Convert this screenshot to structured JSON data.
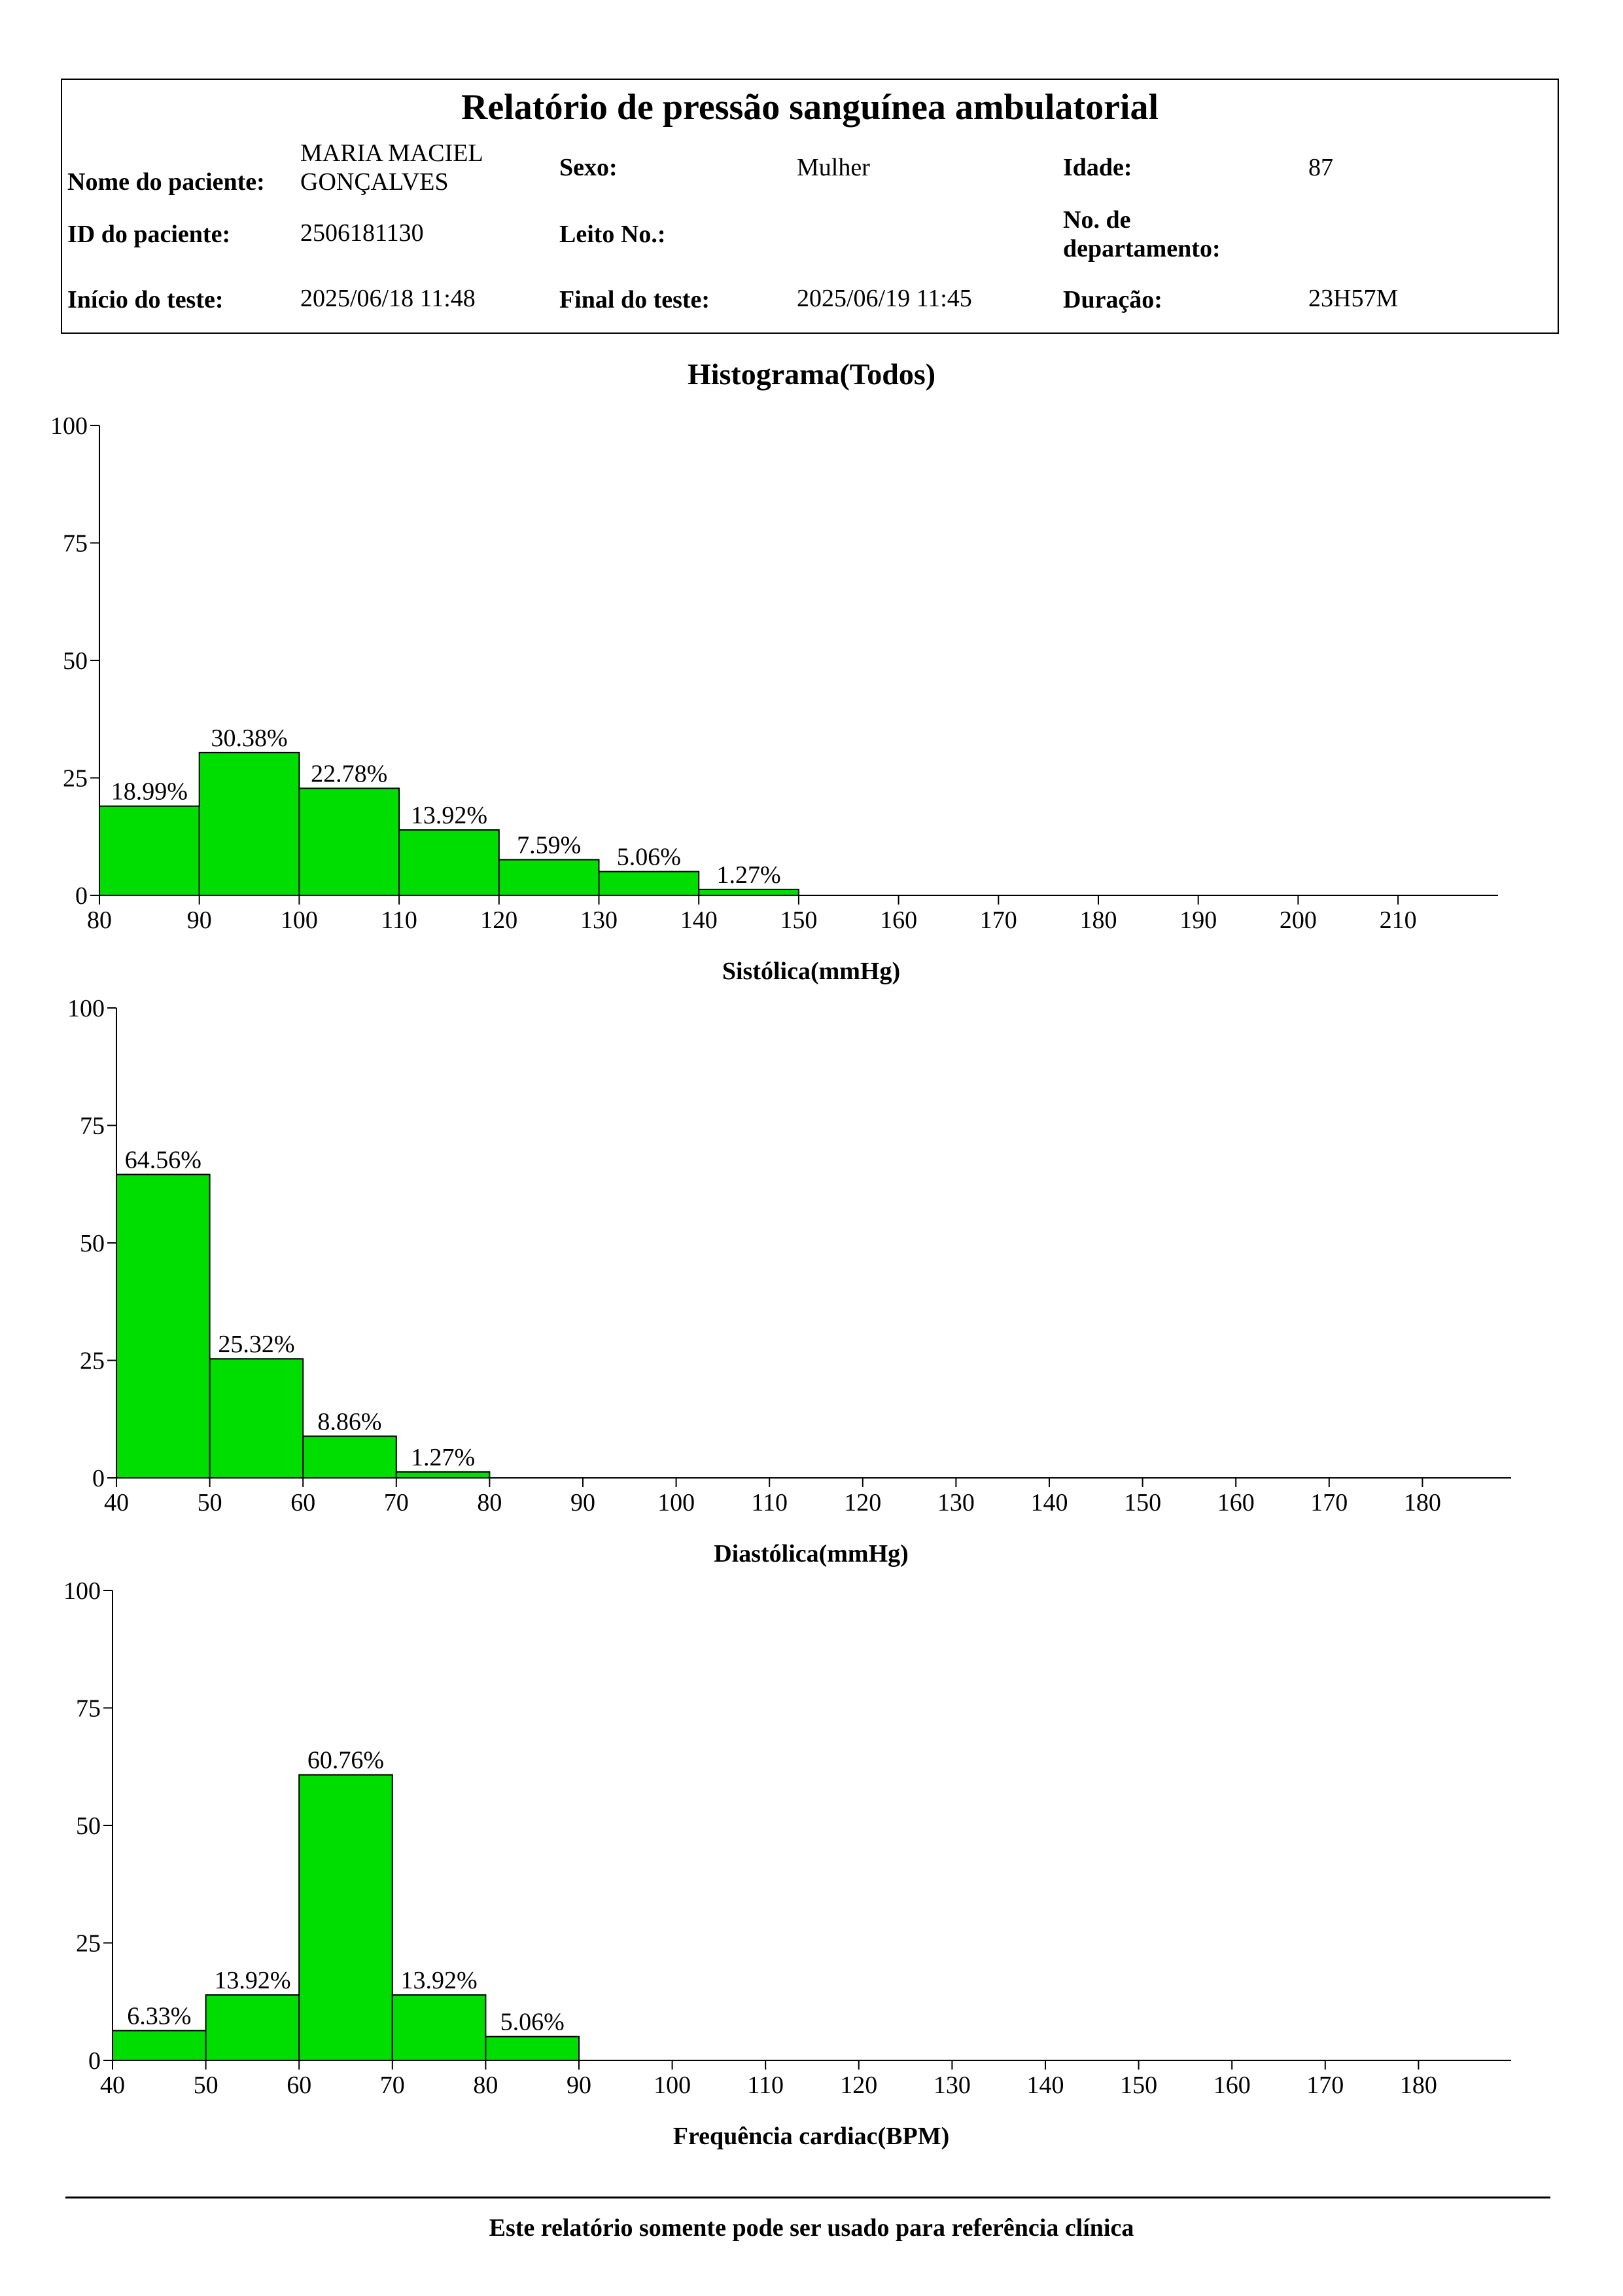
{
  "report": {
    "title": "Relatório de pressão sanguínea ambulatorial",
    "patient_name_label": "Nome do paciente:",
    "patient_name_line1": "MARIA MACIEL",
    "patient_name_line2": "GONÇALVES",
    "sex_label": "Sexo:",
    "sex_value": "Mulher",
    "age_label": "Idade:",
    "age_value": "87",
    "patient_id_label": "ID do paciente:",
    "patient_id_value": "2506181130",
    "bed_label": "Leito No.:",
    "bed_value": "",
    "department_label_line1": "No. de",
    "department_label_line2": "departamento:",
    "department_value": "",
    "start_label": "Início do teste:",
    "start_value": "2025/06/18 11:48",
    "end_label": "Final do teste:",
    "end_value": "2025/06/19 11:45",
    "duration_label": "Duração:",
    "duration_value": "23H57M"
  },
  "chart_title": "Histograma(Todos)",
  "colors": {
    "bar_fill": "#00dd00",
    "bar_stroke": "#000000",
    "axis": "#000000"
  },
  "footer": {
    "note": "Este relatório somente pode ser usado para referência clínica"
  },
  "chart_data": [
    {
      "type": "bar",
      "xlabel": "Sistólica(mmHg)",
      "ylabel": "",
      "ylim": [
        0,
        100
      ],
      "yticks": [
        0,
        25,
        50,
        75,
        100
      ],
      "xticks": [
        80,
        90,
        100,
        110,
        120,
        130,
        140,
        150,
        160,
        170,
        180,
        190,
        200,
        210
      ],
      "xlim": [
        80,
        220
      ],
      "bins": [
        {
          "x0": 80,
          "x1": 90,
          "value": 18.99,
          "label": "18.99%"
        },
        {
          "x0": 90,
          "x1": 100,
          "value": 30.38,
          "label": "30.38%"
        },
        {
          "x0": 100,
          "x1": 110,
          "value": 22.78,
          "label": "22.78%"
        },
        {
          "x0": 110,
          "x1": 120,
          "value": 13.92,
          "label": "13.92%"
        },
        {
          "x0": 120,
          "x1": 130,
          "value": 7.59,
          "label": "7.59%"
        },
        {
          "x0": 130,
          "x1": 140,
          "value": 5.06,
          "label": "5.06%"
        },
        {
          "x0": 140,
          "x1": 150,
          "value": 1.27,
          "label": "1.27%"
        }
      ]
    },
    {
      "type": "bar",
      "xlabel": "Diastólica(mmHg)",
      "ylabel": "",
      "ylim": [
        0,
        100
      ],
      "yticks": [
        0,
        25,
        50,
        75,
        100
      ],
      "xticks": [
        40,
        50,
        60,
        70,
        80,
        90,
        100,
        110,
        120,
        130,
        140,
        150,
        160,
        170,
        180
      ],
      "xlim": [
        40,
        190
      ],
      "bins": [
        {
          "x0": 40,
          "x1": 50,
          "value": 64.56,
          "label": "64.56%"
        },
        {
          "x0": 50,
          "x1": 60,
          "value": 25.32,
          "label": "25.32%"
        },
        {
          "x0": 60,
          "x1": 70,
          "value": 8.86,
          "label": "8.86%"
        },
        {
          "x0": 70,
          "x1": 80,
          "value": 1.27,
          "label": "1.27%"
        }
      ]
    },
    {
      "type": "bar",
      "xlabel": "Frequência cardiac(BPM)",
      "ylabel": "",
      "ylim": [
        0,
        100
      ],
      "yticks": [
        0,
        25,
        50,
        75,
        100
      ],
      "xticks": [
        40,
        50,
        60,
        70,
        80,
        90,
        100,
        110,
        120,
        130,
        140,
        150,
        160,
        170,
        180
      ],
      "xlim": [
        40,
        190
      ],
      "bins": [
        {
          "x0": 40,
          "x1": 50,
          "value": 6.33,
          "label": "6.33%"
        },
        {
          "x0": 50,
          "x1": 60,
          "value": 13.92,
          "label": "13.92%"
        },
        {
          "x0": 60,
          "x1": 70,
          "value": 60.76,
          "label": "60.76%"
        },
        {
          "x0": 70,
          "x1": 80,
          "value": 13.92,
          "label": "13.92%"
        },
        {
          "x0": 80,
          "x1": 90,
          "value": 5.06,
          "label": "5.06%"
        }
      ]
    }
  ]
}
